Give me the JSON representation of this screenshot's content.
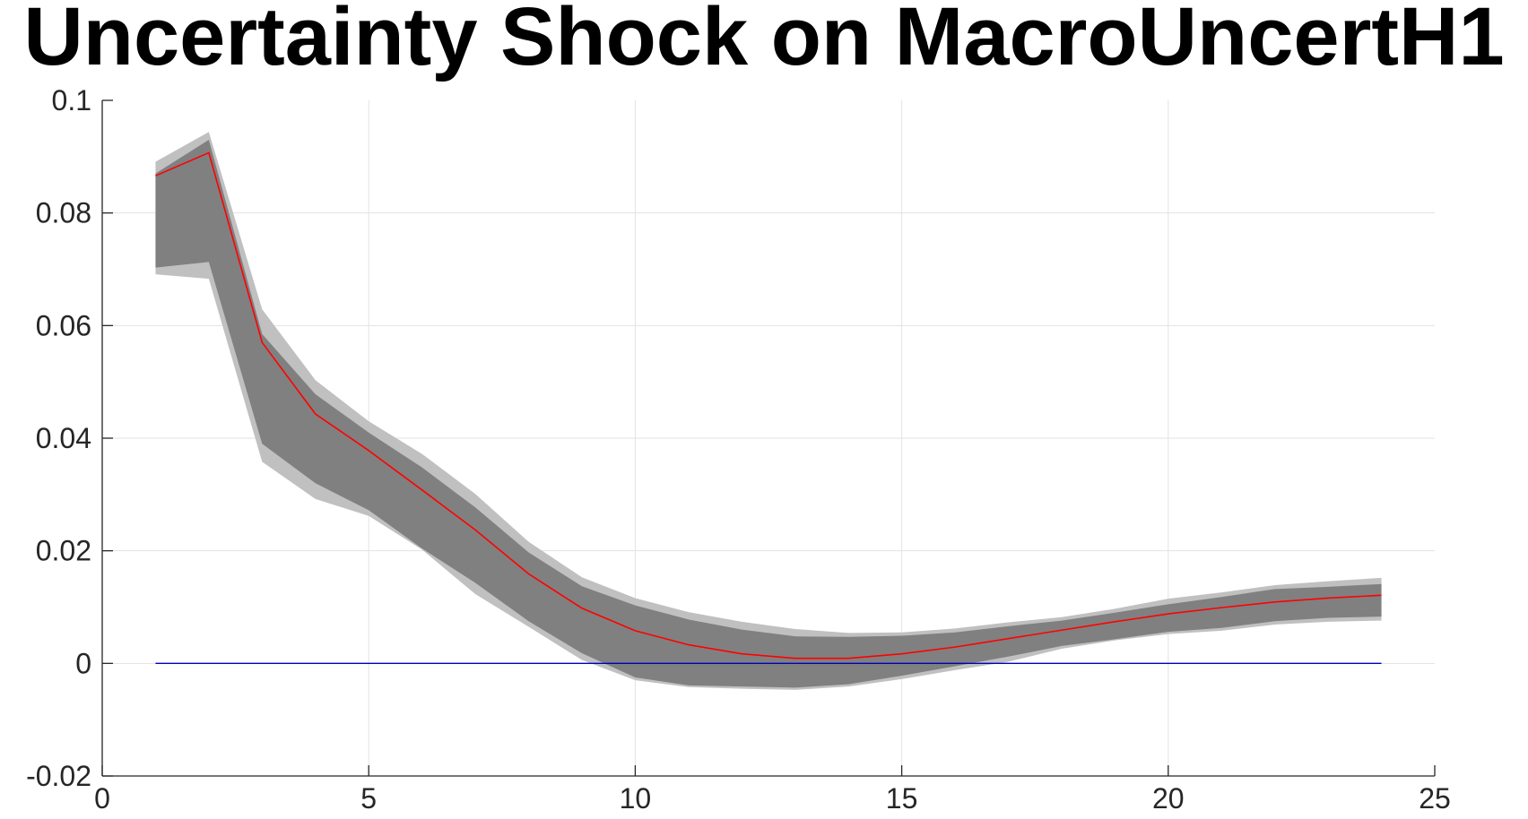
{
  "chart_data": {
    "type": "line",
    "title": "Uncertainty Shock on MacroUncertH1",
    "xlabel": "",
    "ylabel": "",
    "xlim": [
      0,
      25
    ],
    "ylim": [
      -0.02,
      0.1
    ],
    "grid": true,
    "x_ticks": [
      0,
      5,
      10,
      15,
      20,
      25
    ],
    "x_tick_labels": [
      "0",
      "5",
      "10",
      "15",
      "20",
      "25"
    ],
    "y_ticks": [
      -0.02,
      0,
      0.02,
      0.04,
      0.06,
      0.08,
      0.1
    ],
    "y_tick_labels": [
      "-0.02",
      "0",
      "0.02",
      "0.04",
      "0.06",
      "0.08",
      "0.1"
    ],
    "x": [
      1,
      2,
      3,
      4,
      5,
      6,
      7,
      8,
      9,
      10,
      11,
      12,
      13,
      14,
      15,
      16,
      17,
      18,
      19,
      20,
      21,
      22,
      23,
      24
    ],
    "median": [
      0.0866,
      0.0907,
      0.057,
      0.0443,
      0.0378,
      0.0308,
      0.0237,
      0.0159,
      0.0098,
      0.0058,
      0.0033,
      0.0017,
      0.0009,
      0.0009,
      0.0017,
      0.0029,
      0.0044,
      0.0059,
      0.0074,
      0.0088,
      0.0099,
      0.0109,
      0.0116,
      0.0121
    ],
    "band_inner": {
      "upper": [
        0.087,
        0.093,
        0.0585,
        0.0478,
        0.041,
        0.0348,
        0.0277,
        0.0197,
        0.0137,
        0.0103,
        0.0078,
        0.006,
        0.0048,
        0.0047,
        0.0049,
        0.0055,
        0.0066,
        0.0076,
        0.009,
        0.0105,
        0.0118,
        0.0132,
        0.0136,
        0.0141
      ],
      "lower": [
        0.0703,
        0.0713,
        0.039,
        0.032,
        0.0272,
        0.0204,
        0.0143,
        0.0075,
        0.0018,
        -0.0025,
        -0.0039,
        -0.0041,
        -0.0043,
        -0.0037,
        -0.0022,
        -0.0005,
        0.0012,
        0.0031,
        0.0043,
        0.0056,
        0.0063,
        0.0075,
        0.0081,
        0.0083
      ]
    },
    "band_outer": {
      "upper": [
        0.0891,
        0.0944,
        0.0629,
        0.0503,
        0.043,
        0.0372,
        0.0301,
        0.0216,
        0.0153,
        0.0116,
        0.0091,
        0.0074,
        0.0061,
        0.0054,
        0.0055,
        0.0062,
        0.0073,
        0.0082,
        0.0097,
        0.0115,
        0.0126,
        0.0139,
        0.0146,
        0.0152
      ],
      "lower": [
        0.0691,
        0.0683,
        0.0358,
        0.0292,
        0.0262,
        0.0202,
        0.0123,
        0.0065,
        0.0006,
        -0.003,
        -0.0042,
        -0.0045,
        -0.0047,
        -0.0041,
        -0.0028,
        -0.0012,
        0.0003,
        0.0026,
        0.0041,
        0.0052,
        0.0058,
        0.0069,
        0.0074,
        0.0076
      ]
    },
    "zero_line": {
      "x": [
        1,
        24
      ],
      "y": [
        0,
        0
      ]
    },
    "colors": {
      "median": "#ff0000",
      "band_inner": "#808080",
      "band_outer": "#c0c0c0",
      "zero_line": "#0000bb"
    }
  }
}
